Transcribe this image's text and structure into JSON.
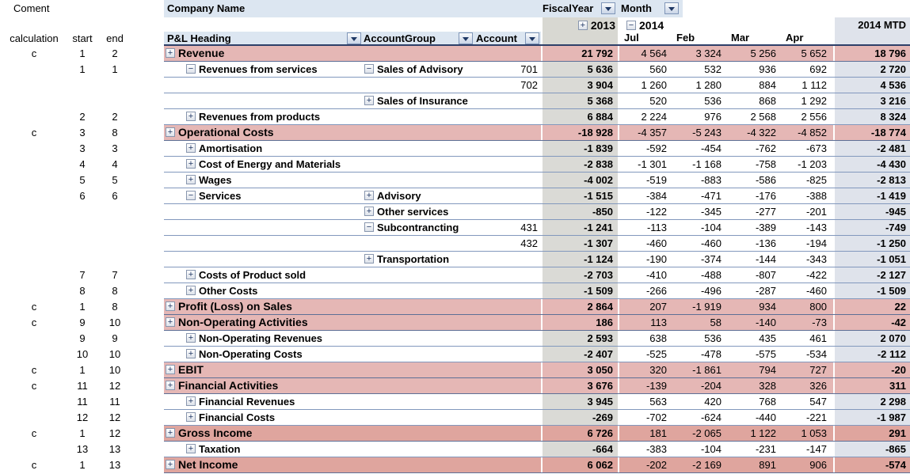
{
  "left_panel": {
    "title": "Coment",
    "columns": [
      "calculation",
      "start",
      "end"
    ]
  },
  "header": {
    "company_name": "Company Name",
    "fiscal_year_label": "FiscalYear",
    "month_label": "Month",
    "pnl_heading_label": "P&L Heading",
    "account_group_label": "AccountGroup",
    "account_label": "Account",
    "year_2013": "2013",
    "year_2013_expand": "+",
    "year_2014": "2014",
    "year_2014_expand": "−",
    "months": [
      "Jul",
      "Feb",
      "Mar",
      "Apr"
    ],
    "mtd_label": "2014 MTD"
  },
  "colors": {
    "header_blue": "#dce6f1",
    "pink_row": "#e5b7b5",
    "pink_row_dark": "#dfa59e",
    "gray_2013_col": "#dadad6",
    "mtd_col": "#dfe3eb",
    "border_light": "#8298bd",
    "border_dark": "#5d6f96",
    "header_underline": "#2e4069"
  },
  "rows": [
    {
      "calc": "c",
      "start": "1",
      "end": "2",
      "style": "pink",
      "pnl_level": 1,
      "pnl_expand": "+",
      "pnl": "Revenue",
      "grp_expand": null,
      "group": "",
      "account": "",
      "vals": [
        "21 792",
        "4 564",
        "3 324",
        "5 256",
        "5 652",
        "18 796"
      ]
    },
    {
      "calc": "",
      "start": "1",
      "end": "1",
      "style": "white",
      "pnl_level": 2,
      "pnl_expand": "−",
      "pnl": "Revenues from services",
      "grp_expand": "−",
      "group": "Sales of Advisory",
      "account": "701",
      "vals": [
        "5 636",
        "560",
        "532",
        "936",
        "692",
        "2 720"
      ]
    },
    {
      "calc": "",
      "start": "",
      "end": "",
      "style": "white",
      "pnl_level": 2,
      "pnl_expand": null,
      "pnl": "",
      "grp_expand": null,
      "group": "",
      "account": "702",
      "vals": [
        "3 904",
        "1 260",
        "1 280",
        "884",
        "1 112",
        "4 536"
      ]
    },
    {
      "calc": "",
      "start": "",
      "end": "",
      "style": "white",
      "pnl_level": 2,
      "pnl_expand": null,
      "pnl": "",
      "grp_expand": "+",
      "group": "Sales of Insurance",
      "account": "",
      "vals": [
        "5 368",
        "520",
        "536",
        "868",
        "1 292",
        "3 216"
      ]
    },
    {
      "calc": "",
      "start": "2",
      "end": "2",
      "style": "white",
      "pnl_level": 2,
      "pnl_expand": "+",
      "pnl": "Revenues from products",
      "grp_expand": null,
      "group": "",
      "account": "",
      "vals": [
        "6 884",
        "2 224",
        "976",
        "2 568",
        "2 556",
        "8 324"
      ]
    },
    {
      "calc": "c",
      "start": "3",
      "end": "8",
      "style": "pink",
      "pnl_level": 1,
      "pnl_expand": "+",
      "pnl": "Operational Costs",
      "grp_expand": null,
      "group": "",
      "account": "",
      "vals": [
        "-18 928",
        "-4 357",
        "-5 243",
        "-4 322",
        "-4 852",
        "-18 774"
      ]
    },
    {
      "calc": "",
      "start": "3",
      "end": "3",
      "style": "white",
      "pnl_level": 2,
      "pnl_expand": "+",
      "pnl": "Amortisation",
      "grp_expand": null,
      "group": "",
      "account": "",
      "vals": [
        "-1 839",
        "-592",
        "-454",
        "-762",
        "-673",
        "-2 481"
      ]
    },
    {
      "calc": "",
      "start": "4",
      "end": "4",
      "style": "white",
      "pnl_level": 2,
      "pnl_expand": "+",
      "pnl": "Cost of Energy and Materials",
      "grp_expand": null,
      "group": "",
      "account": "",
      "vals": [
        "-2 838",
        "-1 301",
        "-1 168",
        "-758",
        "-1 203",
        "-4 430"
      ]
    },
    {
      "calc": "",
      "start": "5",
      "end": "5",
      "style": "white",
      "pnl_level": 2,
      "pnl_expand": "+",
      "pnl": "Wages",
      "grp_expand": null,
      "group": "",
      "account": "",
      "vals": [
        "-4 002",
        "-519",
        "-883",
        "-586",
        "-825",
        "-2 813"
      ]
    },
    {
      "calc": "",
      "start": "6",
      "end": "6",
      "style": "white",
      "pnl_level": 2,
      "pnl_expand": "−",
      "pnl": "Services",
      "grp_expand": "+",
      "group": "Advisory",
      "account": "",
      "vals": [
        "-1 515",
        "-384",
        "-471",
        "-176",
        "-388",
        "-1 419"
      ]
    },
    {
      "calc": "",
      "start": "",
      "end": "",
      "style": "white",
      "pnl_level": 2,
      "pnl_expand": null,
      "pnl": "",
      "grp_expand": "+",
      "group": "Other services",
      "account": "",
      "vals": [
        "-850",
        "-122",
        "-345",
        "-277",
        "-201",
        "-945"
      ]
    },
    {
      "calc": "",
      "start": "",
      "end": "",
      "style": "white",
      "pnl_level": 2,
      "pnl_expand": null,
      "pnl": "",
      "grp_expand": "−",
      "group": "Subcontrancting",
      "account": "431",
      "vals": [
        "-1 241",
        "-113",
        "-104",
        "-389",
        "-143",
        "-749"
      ]
    },
    {
      "calc": "",
      "start": "",
      "end": "",
      "style": "white",
      "pnl_level": 2,
      "pnl_expand": null,
      "pnl": "",
      "grp_expand": null,
      "group": "",
      "account": "432",
      "vals": [
        "-1 307",
        "-460",
        "-460",
        "-136",
        "-194",
        "-1 250"
      ]
    },
    {
      "calc": "",
      "start": "",
      "end": "",
      "style": "white",
      "pnl_level": 2,
      "pnl_expand": null,
      "pnl": "",
      "grp_expand": "+",
      "group": "Transportation",
      "account": "",
      "vals": [
        "-1 124",
        "-190",
        "-374",
        "-144",
        "-343",
        "-1 051"
      ]
    },
    {
      "calc": "",
      "start": "7",
      "end": "7",
      "style": "white",
      "pnl_level": 2,
      "pnl_expand": "+",
      "pnl": "Costs of Product sold",
      "grp_expand": null,
      "group": "",
      "account": "",
      "vals": [
        "-2 703",
        "-410",
        "-488",
        "-807",
        "-422",
        "-2 127"
      ]
    },
    {
      "calc": "",
      "start": "8",
      "end": "8",
      "style": "white",
      "pnl_level": 2,
      "pnl_expand": "+",
      "pnl": "Other Costs",
      "grp_expand": null,
      "group": "",
      "account": "",
      "vals": [
        "-1 509",
        "-266",
        "-496",
        "-287",
        "-460",
        "-1 509"
      ]
    },
    {
      "calc": "c",
      "start": "1",
      "end": "8",
      "style": "pink",
      "pnl_level": 1,
      "pnl_expand": "+",
      "pnl": "Profit (Loss) on Sales",
      "grp_expand": null,
      "group": "",
      "account": "",
      "vals": [
        "2 864",
        "207",
        "-1 919",
        "934",
        "800",
        "22"
      ]
    },
    {
      "calc": "c",
      "start": "9",
      "end": "10",
      "style": "pink",
      "pnl_level": 1,
      "pnl_expand": "+",
      "pnl": "Non-Operating Activities",
      "grp_expand": null,
      "group": "",
      "account": "",
      "vals": [
        "186",
        "113",
        "58",
        "-140",
        "-73",
        "-42"
      ]
    },
    {
      "calc": "",
      "start": "9",
      "end": "9",
      "style": "white",
      "pnl_level": 2,
      "pnl_expand": "+",
      "pnl": "Non-Operating Revenues",
      "grp_expand": null,
      "group": "",
      "account": "",
      "vals": [
        "2 593",
        "638",
        "536",
        "435",
        "461",
        "2 070"
      ]
    },
    {
      "calc": "",
      "start": "10",
      "end": "10",
      "style": "white",
      "pnl_level": 2,
      "pnl_expand": "+",
      "pnl": "Non-Operating Costs",
      "grp_expand": null,
      "group": "",
      "account": "",
      "vals": [
        "-2 407",
        "-525",
        "-478",
        "-575",
        "-534",
        "-2 112"
      ]
    },
    {
      "calc": "c",
      "start": "1",
      "end": "10",
      "style": "pink",
      "pnl_level": 1,
      "pnl_expand": "+",
      "pnl": "EBIT",
      "grp_expand": null,
      "group": "",
      "account": "",
      "vals": [
        "3 050",
        "320",
        "-1 861",
        "794",
        "727",
        "-20"
      ]
    },
    {
      "calc": "c",
      "start": "11",
      "end": "12",
      "style": "pink",
      "pnl_level": 1,
      "pnl_expand": "+",
      "pnl": "Financial Activities",
      "grp_expand": null,
      "group": "",
      "account": "",
      "vals": [
        "3 676",
        "-139",
        "-204",
        "328",
        "326",
        "311"
      ]
    },
    {
      "calc": "",
      "start": "11",
      "end": "11",
      "style": "white",
      "pnl_level": 2,
      "pnl_expand": "+",
      "pnl": "Financial Revenues",
      "grp_expand": null,
      "group": "",
      "account": "",
      "vals": [
        "3 945",
        "563",
        "420",
        "768",
        "547",
        "2 298"
      ]
    },
    {
      "calc": "",
      "start": "12",
      "end": "12",
      "style": "white",
      "pnl_level": 2,
      "pnl_expand": "+",
      "pnl": "Financial Costs",
      "grp_expand": null,
      "group": "",
      "account": "",
      "vals": [
        "-269",
        "-702",
        "-624",
        "-440",
        "-221",
        "-1 987"
      ]
    },
    {
      "calc": "c",
      "start": "1",
      "end": "12",
      "style": "pink2",
      "pnl_level": 1,
      "pnl_expand": "+",
      "pnl": "Gross Income",
      "grp_expand": null,
      "group": "",
      "account": "",
      "vals": [
        "6 726",
        "181",
        "-2 065",
        "1 122",
        "1 053",
        "291"
      ]
    },
    {
      "calc": "",
      "start": "13",
      "end": "13",
      "style": "white",
      "pnl_level": 2,
      "pnl_expand": "+",
      "pnl": "Taxation",
      "grp_expand": null,
      "group": "",
      "account": "",
      "vals": [
        "-664",
        "-383",
        "-104",
        "-231",
        "-147",
        "-865"
      ]
    },
    {
      "calc": "c",
      "start": "1",
      "end": "13",
      "style": "pink2",
      "pnl_level": 1,
      "pnl_expand": "+",
      "pnl": "Net Income",
      "grp_expand": null,
      "group": "",
      "account": "",
      "vals": [
        "6 062",
        "-202",
        "-2 169",
        "891",
        "906",
        "-574"
      ]
    }
  ]
}
